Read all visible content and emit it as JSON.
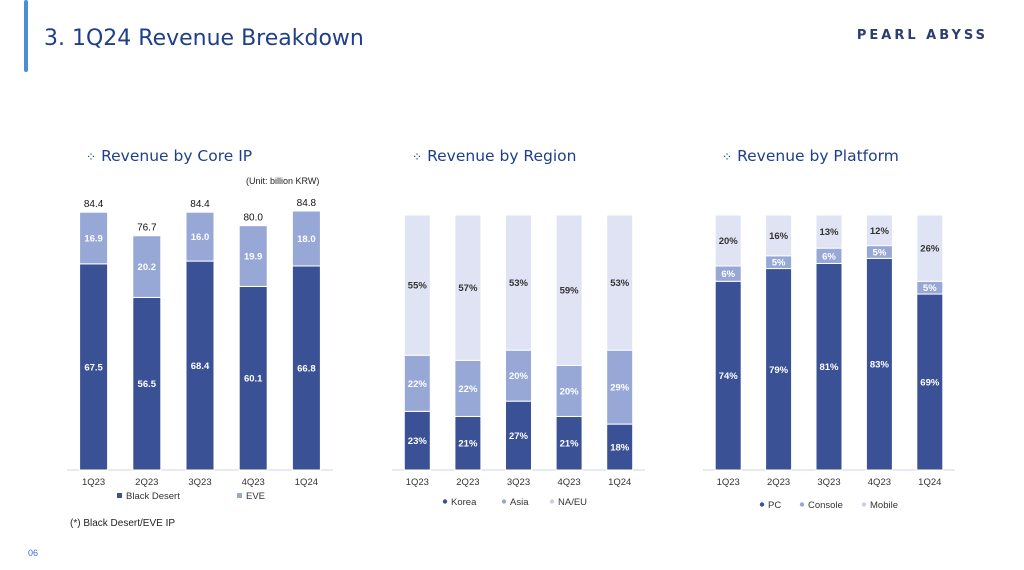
{
  "header": {
    "title": "3. 1Q24 Revenue Breakdown",
    "brand": "PEARL ABYSS"
  },
  "page_number": "06",
  "footnote": "(*) Black Desert/EVE IP",
  "unit_label": "(Unit: billion KRW)",
  "colors": {
    "dark": "#3a5295",
    "mid": "#97a8d7",
    "light": "#dfe3f3"
  },
  "chart_data": [
    {
      "type": "bar",
      "stacked": true,
      "title": "Revenue by Core IP",
      "categories": [
        "1Q23",
        "2Q23",
        "3Q23",
        "4Q23",
        "1Q24"
      ],
      "series": [
        {
          "name": "Black Desert",
          "values": [
            67.5,
            56.5,
            68.4,
            60.1,
            66.8
          ],
          "labels": [
            "67.5",
            "56.5",
            "68.4",
            "60.1",
            "66.8"
          ],
          "color": "#3a5295"
        },
        {
          "name": "EVE",
          "values": [
            16.9,
            20.2,
            16.0,
            19.9,
            18.0
          ],
          "labels": [
            "16.9",
            "20.2",
            "16.0",
            "19.9",
            "18.0"
          ],
          "color": "#97a8d7"
        }
      ],
      "totals": [
        "84.4",
        "76.7",
        "84.4",
        "80.0",
        "84.8"
      ],
      "ylim": [
        0,
        84.8
      ]
    },
    {
      "type": "bar",
      "stacked": true,
      "percent": true,
      "title": "Revenue by Region",
      "categories": [
        "1Q23",
        "2Q23",
        "3Q23",
        "4Q23",
        "1Q24"
      ],
      "series": [
        {
          "name": "Korea",
          "values": [
            23,
            21,
            27,
            21,
            18
          ],
          "labels": [
            "23%",
            "21%",
            "27%",
            "21%",
            "18%"
          ],
          "color": "#3a5295"
        },
        {
          "name": "Asia",
          "values": [
            22,
            22,
            20,
            20,
            29
          ],
          "labels": [
            "22%",
            "22%",
            "20%",
            "20%",
            "29%"
          ],
          "color": "#97a8d7"
        },
        {
          "name": "NA/EU",
          "values": [
            55,
            57,
            53,
            59,
            53
          ],
          "labels": [
            "55%",
            "57%",
            "53%",
            "59%",
            "53%"
          ],
          "color": "#dfe3f3"
        }
      ],
      "ylim": [
        0,
        100
      ]
    },
    {
      "type": "bar",
      "stacked": true,
      "percent": true,
      "title": "Revenue by Platform",
      "categories": [
        "1Q23",
        "2Q23",
        "3Q23",
        "4Q23",
        "1Q24"
      ],
      "series": [
        {
          "name": "PC",
          "values": [
            74,
            79,
            81,
            83,
            69
          ],
          "labels": [
            "74%",
            "79%",
            "81%",
            "83%",
            "69%"
          ],
          "color": "#3a5295"
        },
        {
          "name": "Console",
          "values": [
            6,
            5,
            6,
            5,
            5
          ],
          "labels": [
            "6%",
            "5%",
            "6%",
            "5%",
            "5%"
          ],
          "color": "#97a8d7"
        },
        {
          "name": "Mobile",
          "values": [
            20,
            16,
            13,
            12,
            26
          ],
          "labels": [
            "20%",
            "16%",
            "13%",
            "12%",
            "26%"
          ],
          "color": "#dfe3f3"
        }
      ],
      "ylim": [
        0,
        100
      ]
    }
  ]
}
